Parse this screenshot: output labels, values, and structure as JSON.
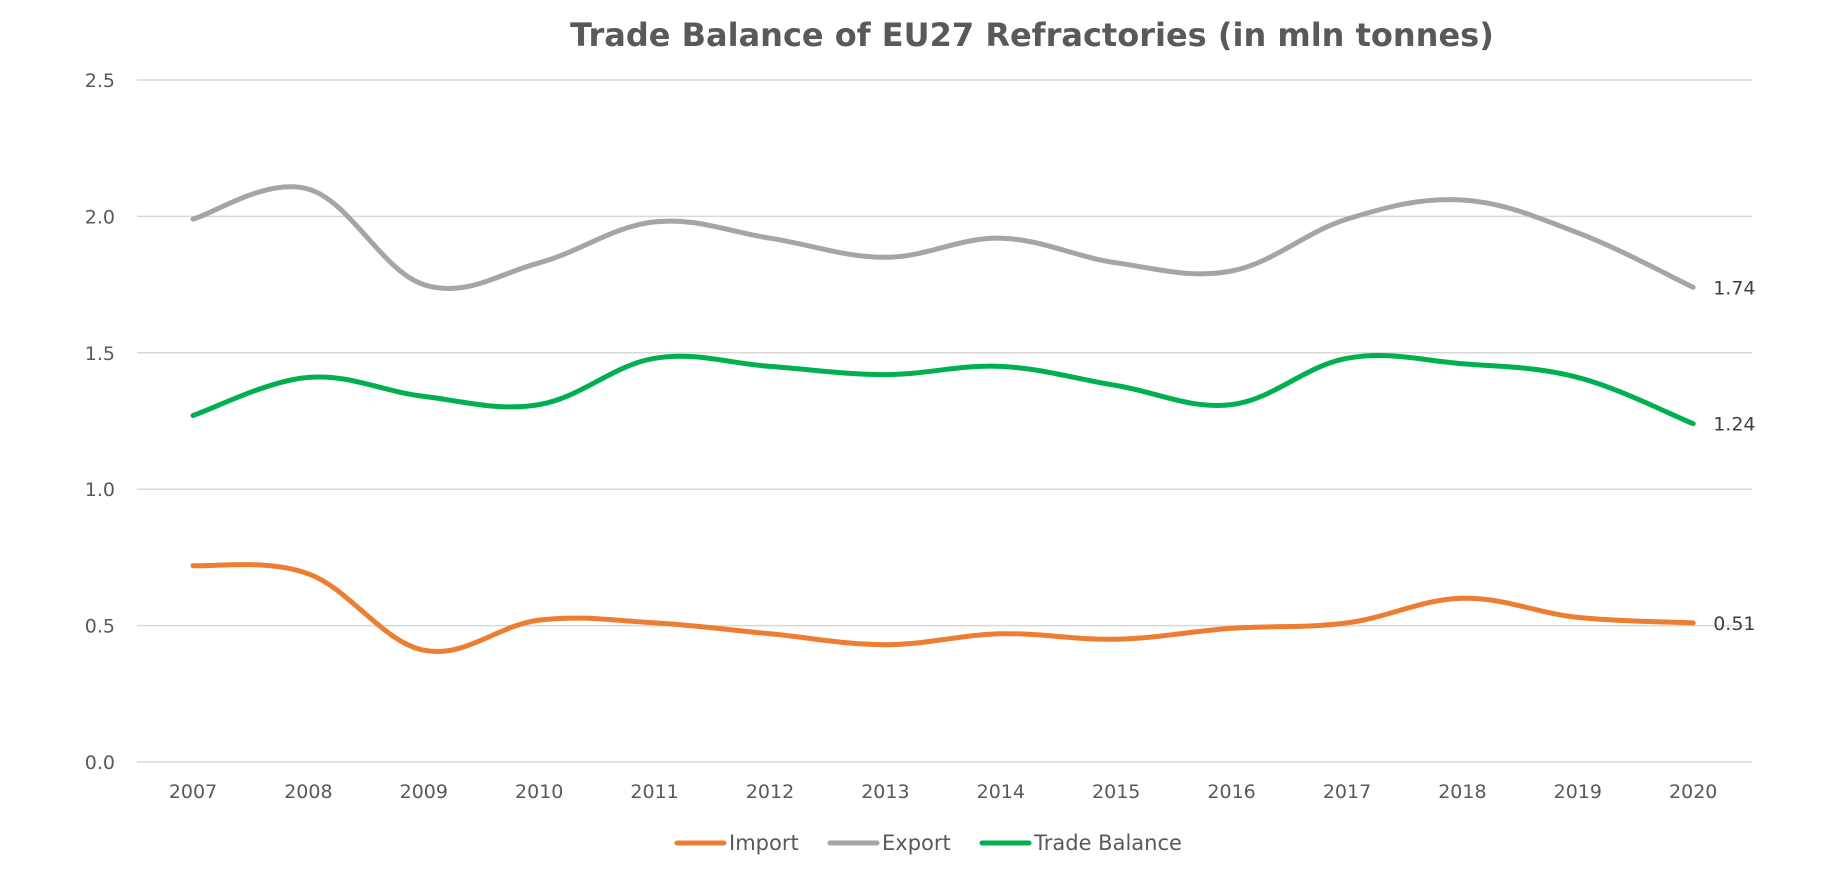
{
  "chart_data": {
    "type": "line",
    "title": "Trade Balance of EU27 Refractories (in mln tonnes)",
    "xlabel": "",
    "ylabel": "",
    "categories": [
      "2007",
      "2008",
      "2009",
      "2010",
      "2011",
      "2012",
      "2013",
      "2014",
      "2015",
      "2016",
      "2017",
      "2018",
      "2019",
      "2020"
    ],
    "ylim": [
      0,
      2.5
    ],
    "yticks": [
      "0.0",
      "0.5",
      "1.0",
      "1.5",
      "2.0",
      "2.5"
    ],
    "grid": true,
    "legend_position": "bottom",
    "series": [
      {
        "name": "Import",
        "color": "#ED7D31",
        "values": [
          0.72,
          0.69,
          0.41,
          0.52,
          0.51,
          0.47,
          0.43,
          0.47,
          0.45,
          0.49,
          0.51,
          0.6,
          0.53,
          0.51
        ],
        "end_label": "0.51"
      },
      {
        "name": "Export",
        "color": "#A5A5A5",
        "values": [
          1.99,
          2.1,
          1.75,
          1.83,
          1.98,
          1.92,
          1.85,
          1.92,
          1.83,
          1.8,
          1.99,
          2.06,
          1.94,
          1.74
        ],
        "end_label": "1.74"
      },
      {
        "name": "Trade Balance",
        "color": "#00B050",
        "values": [
          1.27,
          1.41,
          1.34,
          1.31,
          1.48,
          1.45,
          1.42,
          1.45,
          1.38,
          1.31,
          1.48,
          1.46,
          1.41,
          1.24
        ],
        "end_label": "1.24"
      }
    ]
  }
}
